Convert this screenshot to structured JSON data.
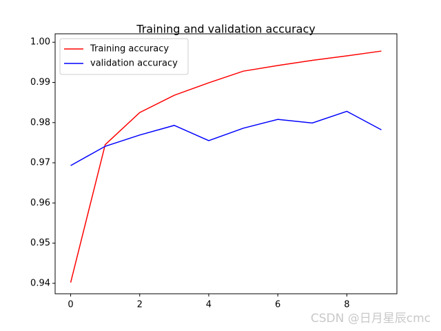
{
  "chart_data": {
    "type": "line",
    "title": "Training and validation accuracy",
    "x": [
      0,
      1,
      2,
      3,
      4,
      5,
      6,
      7,
      8,
      9
    ],
    "series": [
      {
        "name": "Training accuracy",
        "color": "#ff0000",
        "values": [
          0.9402,
          0.9745,
          0.9825,
          0.9868,
          0.9899,
          0.9928,
          0.9942,
          0.9955,
          0.9966,
          0.9978
        ]
      },
      {
        "name": "validation accuracy",
        "color": "#0000ff",
        "values": [
          0.9693,
          0.9741,
          0.9769,
          0.9793,
          0.9755,
          0.9786,
          0.9808,
          0.9799,
          0.9828,
          0.9782
        ]
      }
    ],
    "xlim": [
      -0.45,
      9.45
    ],
    "ylim": [
      0.9374,
      1.0021
    ],
    "xticks": [
      0,
      2,
      4,
      6,
      8
    ],
    "yticks": [
      0.94,
      0.95,
      0.96,
      0.97,
      0.98,
      0.99,
      {
        "value": 1,
        "label": "1.00"
      }
    ],
    "legend": "upper left",
    "watermark": "CSDN @日月星辰cmc"
  }
}
